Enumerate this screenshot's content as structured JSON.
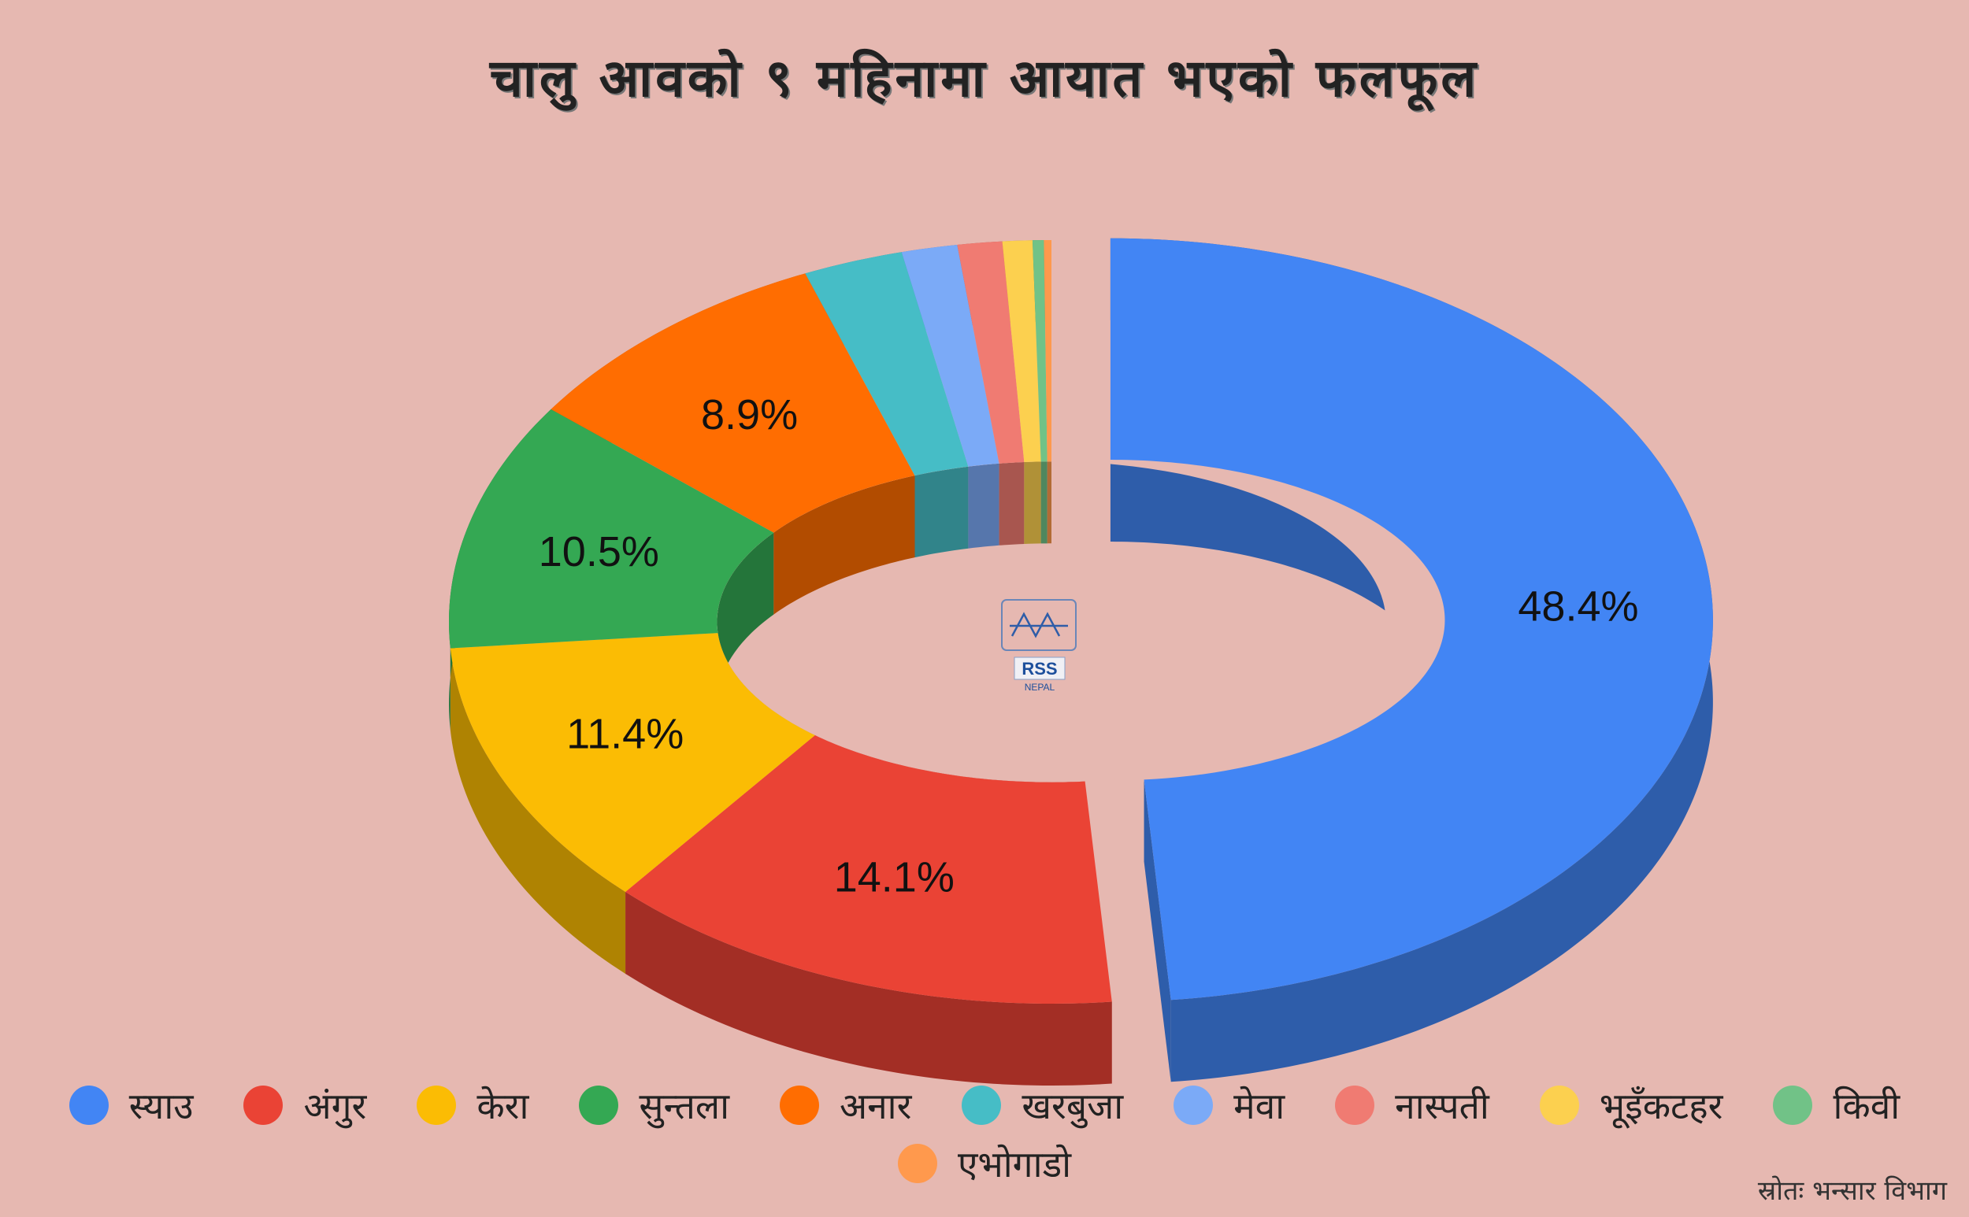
{
  "title": "चालु आवको ९ महिनामा आयात भएको फलफूल",
  "source": "स्रोतः भन्सार विभाग",
  "logo": {
    "text": "RSS",
    "subtext": "NEPAL"
  },
  "background": "#e6b8b1",
  "chart_data": {
    "type": "pie",
    "style": "3d-donut",
    "title": "चालु आवको ९ महिनामा आयात भएको फलफूल",
    "legend_position": "bottom",
    "exploded": [
      "स्याउ"
    ],
    "categories": [
      "स्याउ",
      "अंगुर",
      "केरा",
      "सुन्तला",
      "अनार",
      "खरबुजा",
      "मेवा",
      "नास्पती",
      "भूइँकटहर",
      "किवी",
      "एभोगाडो"
    ],
    "values": [
      48.4,
      14.1,
      11.4,
      10.5,
      8.9,
      2.7,
      1.5,
      1.2,
      0.8,
      0.3,
      0.2
    ],
    "data_labels": [
      "48.4%",
      "14.1%",
      "11.4%",
      "10.5%",
      "8.9%",
      "",
      "",
      "",
      "",
      "",
      ""
    ],
    "colors": [
      "#4285f4",
      "#ea4335",
      "#fbbc04",
      "#34a853",
      "#ff6d01",
      "#46bdc6",
      "#7baaf7",
      "#f07b72",
      "#fcd04f",
      "#71c287",
      "#ff994d"
    ]
  }
}
